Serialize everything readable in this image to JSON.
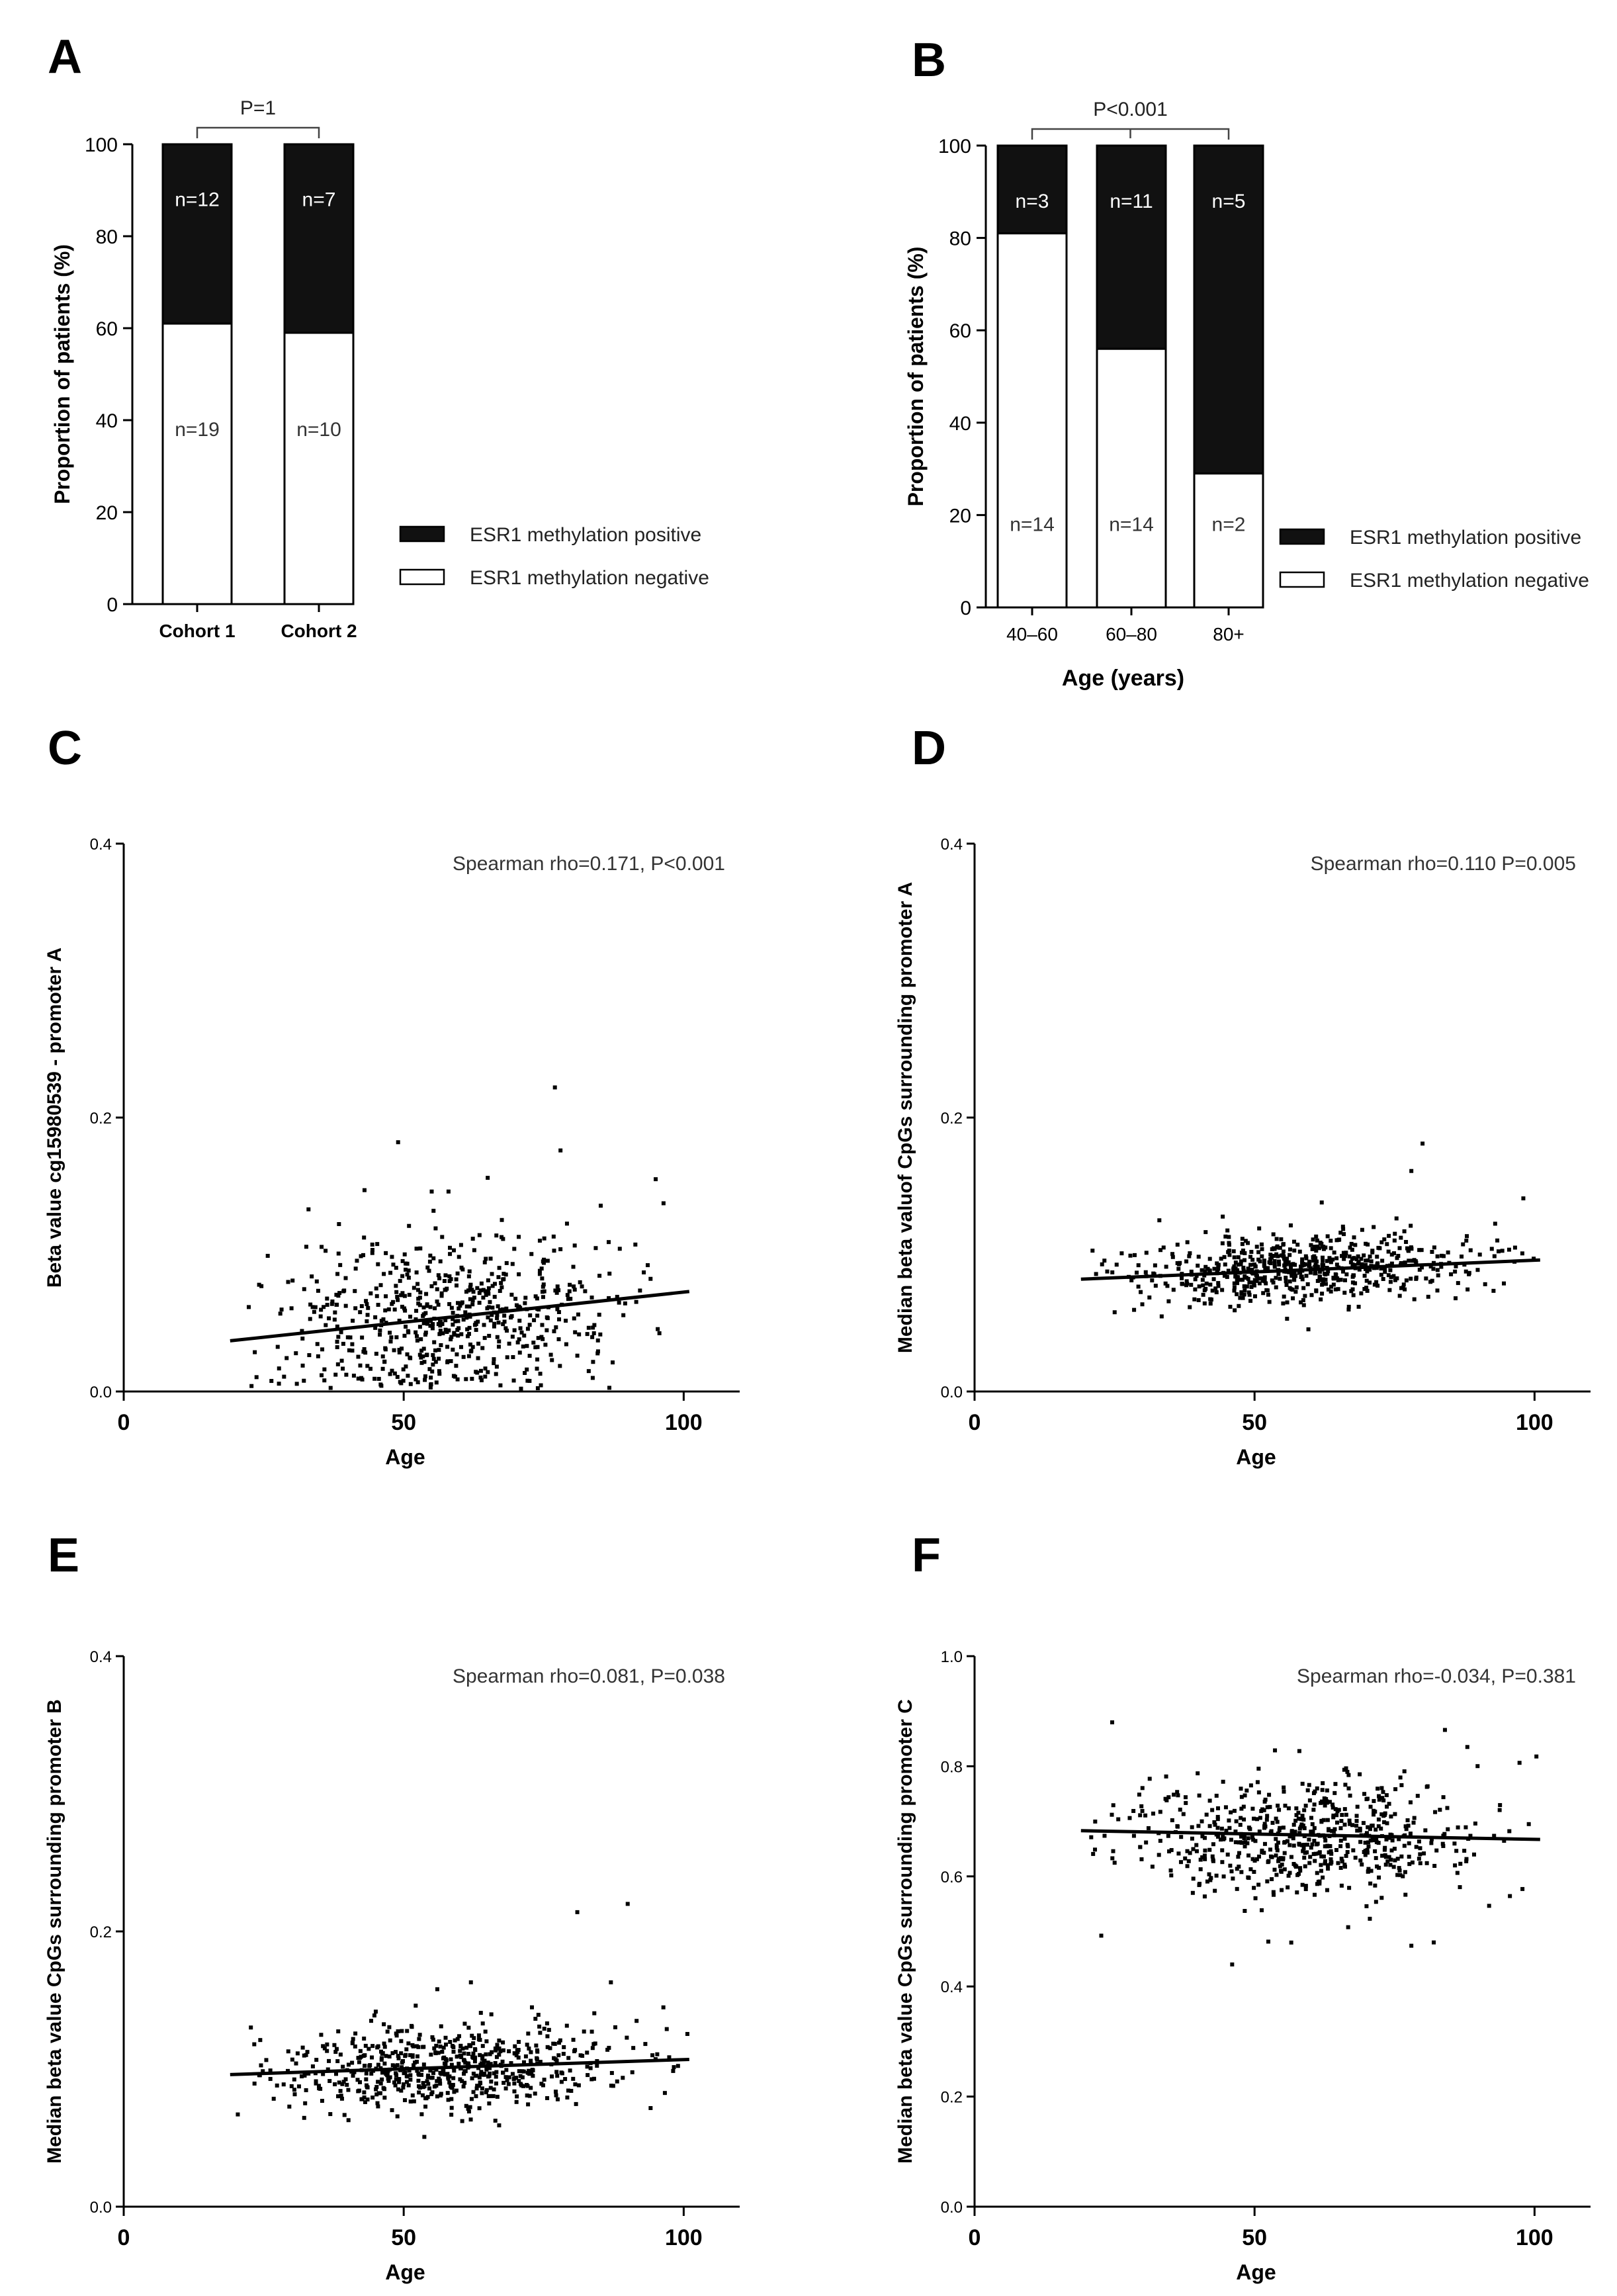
{
  "figure": {
    "panels": [
      {
        "id": "A",
        "letter": "A"
      },
      {
        "id": "B",
        "letter": "B"
      },
      {
        "id": "C",
        "letter": "C"
      },
      {
        "id": "D",
        "letter": "D"
      },
      {
        "id": "E",
        "letter": "E"
      },
      {
        "id": "F",
        "letter": "F"
      }
    ]
  },
  "colors": {
    "positive": "#111111",
    "negative": "#ffffff",
    "axis": "#000000",
    "point": "#000000"
  },
  "chart_data": [
    {
      "id": "A",
      "type": "bar",
      "stacked": true,
      "ylabel": "Proportion of patients (%)",
      "xlabel": "",
      "ylim": [
        0,
        100
      ],
      "yticks": [
        0,
        20,
        40,
        60,
        80,
        100
      ],
      "categories": [
        "Cohort 1",
        "Cohort 2"
      ],
      "series": [
        {
          "name": "ESR1 methylation negative",
          "values": [
            61,
            59
          ],
          "labels": [
            "n=19",
            "n=10"
          ]
        },
        {
          "name": "ESR1 methylation positive",
          "values": [
            39,
            41
          ],
          "labels": [
            "n=12",
            "n=7"
          ]
        }
      ],
      "legend": [
        "ESR1 methylation positive",
        "ESR1 methylation negative"
      ],
      "legend_position": "right",
      "annotation": "P=1"
    },
    {
      "id": "B",
      "type": "bar",
      "stacked": true,
      "ylabel": "Proportion of patients (%)",
      "xlabel": "Age (years)",
      "ylim": [
        0,
        100
      ],
      "yticks": [
        0,
        20,
        40,
        60,
        80,
        100
      ],
      "categories": [
        "40–60",
        "60–80",
        "80+"
      ],
      "series": [
        {
          "name": "ESR1 methylation negative",
          "values": [
            81,
            56,
            29
          ],
          "labels": [
            "n=14",
            "n=14",
            "n=2"
          ]
        },
        {
          "name": "ESR1 methylation positive",
          "values": [
            19,
            44,
            71
          ],
          "labels": [
            "n=3",
            "n=11",
            "n=5"
          ]
        }
      ],
      "legend": [
        "ESR1 methylation positive",
        "ESR1 methylation negative"
      ],
      "legend_position": "right",
      "annotation": "P<0.001"
    },
    {
      "id": "C",
      "type": "scatter",
      "xlabel": "Age",
      "ylabel": "Beta value cg15980539 - promoter A",
      "xlim": [
        0,
        110
      ],
      "ylim": [
        0,
        0.4
      ],
      "xticks": [
        0,
        50,
        100
      ],
      "yticks": [
        0.0,
        0.2,
        0.4
      ],
      "ytick_labels": [
        "0.0",
        "0.2",
        "0.4"
      ],
      "annotation": "Spearman rho=0.171, P<0.001",
      "regression": {
        "x": [
          19,
          101
        ],
        "y": [
          0.037,
          0.073
        ]
      },
      "points": {
        "x_range": [
          19,
          101
        ],
        "center": 0.052,
        "spread": 0.03,
        "n": 620,
        "outliers": [
          [
            77,
            0.222
          ],
          [
            49,
            0.182
          ],
          [
            43,
            0.147
          ],
          [
            55,
            0.146
          ],
          [
            58,
            0.146
          ],
          [
            65,
            0.156
          ],
          [
            78,
            0.176
          ],
          [
            95,
            0.155
          ],
          [
            33,
            0.133
          ]
        ]
      }
    },
    {
      "id": "D",
      "type": "scatter",
      "xlabel": "Age",
      "ylabel": "Median beta valuof CpGs surrounding promoter A",
      "xlim": [
        0,
        110
      ],
      "ylim": [
        0,
        0.4
      ],
      "xticks": [
        0,
        50,
        100
      ],
      "yticks": [
        0.0,
        0.2,
        0.4
      ],
      "ytick_labels": [
        "0.0",
        "0.2",
        "0.4"
      ],
      "annotation": "Spearman rho=0.110 P=0.005",
      "regression": {
        "x": [
          19,
          101
        ],
        "y": [
          0.082,
          0.096
        ]
      },
      "points": {
        "x_range": [
          19,
          101
        ],
        "center": 0.088,
        "spread": 0.013,
        "n": 620,
        "outliers": [
          [
            80,
            0.181
          ],
          [
            78,
            0.161
          ],
          [
            33,
            0.125
          ],
          [
            62,
            0.138
          ],
          [
            98,
            0.141
          ]
        ]
      }
    },
    {
      "id": "E",
      "type": "scatter",
      "xlabel": "Age",
      "ylabel": "Median beta value CpGs surrounding promoter B",
      "xlim": [
        0,
        110
      ],
      "ylim": [
        0,
        0.4
      ],
      "xticks": [
        0,
        50,
        100
      ],
      "yticks": [
        0.0,
        0.2,
        0.4
      ],
      "ytick_labels": [
        "0.0",
        "0.2",
        "0.4"
      ],
      "annotation": "Spearman rho=0.081, P=0.038",
      "regression": {
        "x": [
          19,
          101
        ],
        "y": [
          0.096,
          0.107
        ]
      },
      "points": {
        "x_range": [
          19,
          101
        ],
        "center": 0.101,
        "spread": 0.016,
        "n": 620,
        "outliers": [
          [
            81,
            0.214
          ],
          [
            90,
            0.22
          ],
          [
            87,
            0.163
          ],
          [
            62,
            0.163
          ],
          [
            56,
            0.158
          ]
        ]
      }
    },
    {
      "id": "F",
      "type": "scatter",
      "xlabel": "Age",
      "ylabel": "Median beta value CpGs surrounding promoter C",
      "xlim": [
        0,
        110
      ],
      "ylim": [
        0,
        1.0
      ],
      "xticks": [
        0,
        50,
        100
      ],
      "yticks": [
        0.0,
        0.2,
        0.4,
        0.6,
        0.8,
        1.0
      ],
      "ytick_labels": [
        "0.0",
        "0.2",
        "0.4",
        "0.6",
        "0.8",
        "1.0"
      ],
      "annotation": "Spearman rho=-0.034, P=0.381",
      "regression": {
        "x": [
          19,
          101
        ],
        "y": [
          0.683,
          0.667
        ]
      },
      "points": {
        "x_range": [
          19,
          101
        ],
        "center": 0.672,
        "spread": 0.055,
        "n": 620,
        "outliers": [
          [
            46,
            0.44
          ],
          [
            84,
            0.866
          ],
          [
            88,
            0.835
          ],
          [
            78,
            0.474
          ],
          [
            82,
            0.48
          ]
        ]
      }
    }
  ]
}
